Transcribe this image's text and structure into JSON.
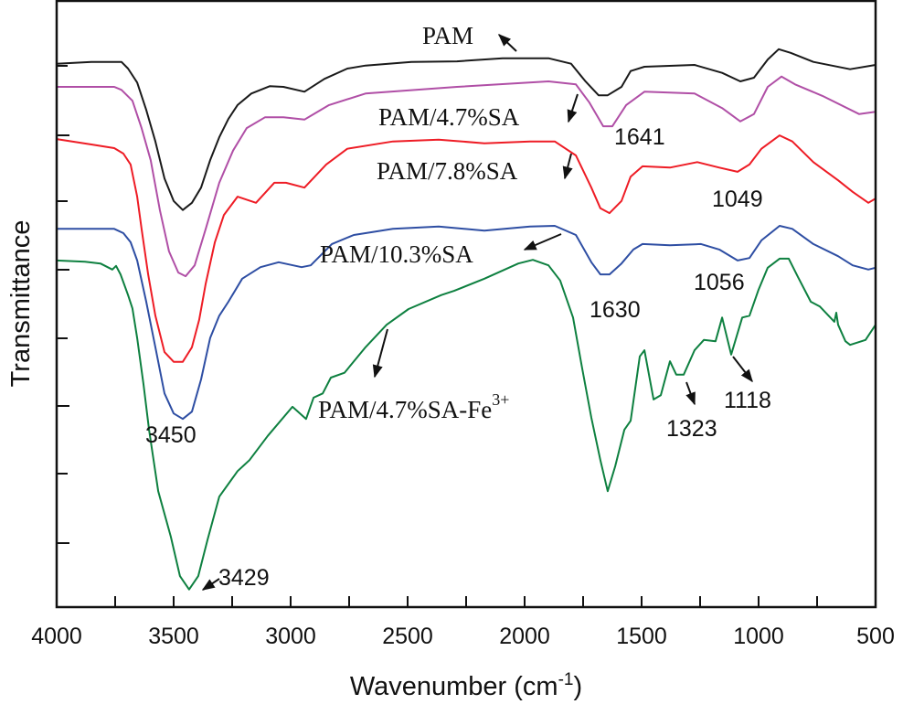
{
  "chart_data": {
    "type": "line",
    "title": "",
    "xlabel": "Wavenumber (cm",
    "xlabel_sup": "-1",
    "xlabel_close": ")",
    "ylabel": "Transmittance",
    "xlim": [
      4000,
      500
    ],
    "x_reversed": true,
    "ylim": [
      0,
      100
    ],
    "y_tick_labels_shown": false,
    "grid": false,
    "x_ticks": [
      "4000",
      "3500",
      "3000",
      "2500",
      "2000",
      "1500",
      "1000",
      "500"
    ],
    "series": [
      {
        "name": "PAM",
        "color": "#1a1a1a",
        "points": [
          [
            4000,
            89.5
          ],
          [
            3852,
            89.8
          ],
          [
            3723,
            89.8
          ],
          [
            3695,
            88.7
          ],
          [
            3656,
            86.4
          ],
          [
            3617,
            81.9
          ],
          [
            3578,
            76.7
          ],
          [
            3539,
            70.6
          ],
          [
            3500,
            66.9
          ],
          [
            3461,
            65.4
          ],
          [
            3422,
            66.6
          ],
          [
            3383,
            69.1
          ],
          [
            3344,
            73.6
          ],
          [
            3305,
            77.4
          ],
          [
            3266,
            80.4
          ],
          [
            3227,
            82.7
          ],
          [
            3168,
            84.6
          ],
          [
            3090,
            85.8
          ],
          [
            3031,
            85.7
          ],
          [
            2941,
            84.9
          ],
          [
            2856,
            87.0
          ],
          [
            2758,
            88.7
          ],
          [
            2680,
            89.2
          ],
          [
            2484,
            89.8
          ],
          [
            2289,
            89.9
          ],
          [
            2094,
            90.4
          ],
          [
            1898,
            90.4
          ],
          [
            1801,
            89.5
          ],
          [
            1742,
            86.7
          ],
          [
            1684,
            84.3
          ],
          [
            1645,
            84.3
          ],
          [
            1586,
            85.7
          ],
          [
            1547,
            88.3
          ],
          [
            1488,
            89.0
          ],
          [
            1274,
            89.3
          ],
          [
            1156,
            88.0
          ],
          [
            1078,
            86.6
          ],
          [
            1020,
            87.2
          ],
          [
            961,
            90.2
          ],
          [
            914,
            91.9
          ],
          [
            863,
            91.3
          ],
          [
            766,
            89.8
          ],
          [
            609,
            88.6
          ],
          [
            500,
            89.3
          ]
        ]
      },
      {
        "name": "PAM/4.7%SA",
        "color": "#b04fa6",
        "points": [
          [
            4000,
            85.7
          ],
          [
            3754,
            85.7
          ],
          [
            3723,
            85.2
          ],
          [
            3676,
            83.4
          ],
          [
            3637,
            78.9
          ],
          [
            3598,
            73.6
          ],
          [
            3559,
            65.4
          ],
          [
            3520,
            58.6
          ],
          [
            3480,
            55.1
          ],
          [
            3449,
            54.5
          ],
          [
            3410,
            56.3
          ],
          [
            3363,
            62.3
          ],
          [
            3305,
            69.9
          ],
          [
            3246,
            75.2
          ],
          [
            3188,
            78.9
          ],
          [
            3109,
            80.7
          ],
          [
            3031,
            80.7
          ],
          [
            2941,
            80.3
          ],
          [
            2836,
            82.7
          ],
          [
            2680,
            84.6
          ],
          [
            2289,
            85.7
          ],
          [
            1898,
            86.6
          ],
          [
            1781,
            86.1
          ],
          [
            1723,
            83.1
          ],
          [
            1664,
            79.2
          ],
          [
            1625,
            79.2
          ],
          [
            1566,
            82.7
          ],
          [
            1488,
            84.9
          ],
          [
            1274,
            84.6
          ],
          [
            1156,
            82.2
          ],
          [
            1078,
            80.0
          ],
          [
            1020,
            81.2
          ],
          [
            961,
            85.7
          ],
          [
            902,
            87.4
          ],
          [
            844,
            86.1
          ],
          [
            727,
            84.2
          ],
          [
            570,
            81.2
          ],
          [
            500,
            81.6
          ]
        ]
      },
      {
        "name": "PAM/7.8%SA",
        "color": "#ee1c25",
        "points": [
          [
            4000,
            77.1
          ],
          [
            3852,
            76.2
          ],
          [
            3754,
            75.6
          ],
          [
            3715,
            74.7
          ],
          [
            3684,
            72.9
          ],
          [
            3656,
            67.6
          ],
          [
            3637,
            62.3
          ],
          [
            3609,
            54.8
          ],
          [
            3578,
            48.0
          ],
          [
            3539,
            42.0
          ],
          [
            3500,
            40.4
          ],
          [
            3461,
            40.4
          ],
          [
            3422,
            42.8
          ],
          [
            3391,
            47.3
          ],
          [
            3363,
            53.3
          ],
          [
            3324,
            60.1
          ],
          [
            3285,
            64.6
          ],
          [
            3227,
            67.6
          ],
          [
            3148,
            66.6
          ],
          [
            3070,
            69.9
          ],
          [
            3020,
            69.9
          ],
          [
            2941,
            69.1
          ],
          [
            2848,
            72.9
          ],
          [
            2758,
            75.5
          ],
          [
            2563,
            76.7
          ],
          [
            2367,
            77.0
          ],
          [
            2172,
            76.4
          ],
          [
            1977,
            76.7
          ],
          [
            1871,
            76.7
          ],
          [
            1781,
            74.4
          ],
          [
            1715,
            69.1
          ],
          [
            1676,
            65.7
          ],
          [
            1637,
            64.9
          ],
          [
            1586,
            66.9
          ],
          [
            1547,
            70.9
          ],
          [
            1496,
            72.6
          ],
          [
            1379,
            72.4
          ],
          [
            1262,
            73.3
          ],
          [
            1168,
            72.4
          ],
          [
            1090,
            71.7
          ],
          [
            1039,
            72.9
          ],
          [
            988,
            75.5
          ],
          [
            910,
            77.7
          ],
          [
            856,
            76.7
          ],
          [
            766,
            73.3
          ],
          [
            660,
            70.3
          ],
          [
            598,
            68.4
          ],
          [
            531,
            66.6
          ],
          [
            500,
            67.3
          ]
        ]
      },
      {
        "name": "PAM/10.3%SA",
        "color": "#2e4ea3",
        "points": [
          [
            4000,
            62.3
          ],
          [
            3754,
            62.3
          ],
          [
            3715,
            61.6
          ],
          [
            3684,
            60.1
          ],
          [
            3656,
            57.1
          ],
          [
            3617,
            50.3
          ],
          [
            3578,
            42.8
          ],
          [
            3539,
            35.2
          ],
          [
            3500,
            31.9
          ],
          [
            3461,
            31.0
          ],
          [
            3422,
            32.2
          ],
          [
            3383,
            37.5
          ],
          [
            3344,
            44.3
          ],
          [
            3305,
            48.0
          ],
          [
            3266,
            50.3
          ],
          [
            3207,
            54.1
          ],
          [
            3129,
            56.0
          ],
          [
            3051,
            56.8
          ],
          [
            2953,
            56.0
          ],
          [
            2914,
            56.3
          ],
          [
            2824,
            59.8
          ],
          [
            2730,
            61.3
          ],
          [
            2563,
            62.3
          ],
          [
            2367,
            62.7
          ],
          [
            2172,
            62.0
          ],
          [
            1977,
            62.7
          ],
          [
            1871,
            62.8
          ],
          [
            1781,
            61.3
          ],
          [
            1715,
            56.8
          ],
          [
            1676,
            54.8
          ],
          [
            1637,
            54.8
          ],
          [
            1586,
            56.6
          ],
          [
            1535,
            58.9
          ],
          [
            1496,
            59.8
          ],
          [
            1379,
            59.6
          ],
          [
            1246,
            59.8
          ],
          [
            1168,
            58.9
          ],
          [
            1090,
            57.1
          ],
          [
            1039,
            57.5
          ],
          [
            988,
            60.4
          ],
          [
            910,
            62.8
          ],
          [
            856,
            62.3
          ],
          [
            766,
            59.8
          ],
          [
            660,
            57.8
          ],
          [
            598,
            56.3
          ],
          [
            531,
            55.6
          ],
          [
            500,
            55.9
          ]
        ]
      },
      {
        "name": "PAM/4.7%SA-Fe3+",
        "color": "#0e8040",
        "points": [
          [
            4000,
            57.1
          ],
          [
            3879,
            56.9
          ],
          [
            3813,
            56.6
          ],
          [
            3762,
            55.6
          ],
          [
            3746,
            56.2
          ],
          [
            3727,
            54.8
          ],
          [
            3695,
            51.4
          ],
          [
            3676,
            49.2
          ],
          [
            3656,
            44.3
          ],
          [
            3629,
            36.7
          ],
          [
            3605,
            29.2
          ],
          [
            3566,
            19.1
          ],
          [
            3512,
            11.6
          ],
          [
            3473,
            5.1
          ],
          [
            3434,
            2.9
          ],
          [
            3395,
            5.1
          ],
          [
            3355,
            11.1
          ],
          [
            3305,
            18.2
          ],
          [
            3227,
            22.4
          ],
          [
            3176,
            24.2
          ],
          [
            3098,
            28.2
          ],
          [
            2992,
            33.0
          ],
          [
            2934,
            31.0
          ],
          [
            2902,
            34.5
          ],
          [
            2863,
            35.2
          ],
          [
            2828,
            37.8
          ],
          [
            2770,
            38.6
          ],
          [
            2680,
            42.8
          ],
          [
            2590,
            46.5
          ],
          [
            2496,
            49.1
          ],
          [
            2356,
            51.4
          ],
          [
            2301,
            52.1
          ],
          [
            2172,
            54.1
          ],
          [
            2027,
            56.6
          ],
          [
            1965,
            57.2
          ],
          [
            1898,
            56.3
          ],
          [
            1848,
            53.8
          ],
          [
            1793,
            47.7
          ],
          [
            1754,
            39.3
          ],
          [
            1715,
            31.2
          ],
          [
            1676,
            24.2
          ],
          [
            1645,
            19.1
          ],
          [
            1613,
            23.2
          ],
          [
            1574,
            29.2
          ],
          [
            1547,
            30.7
          ],
          [
            1508,
            41.3
          ],
          [
            1488,
            42.3
          ],
          [
            1449,
            34.2
          ],
          [
            1418,
            34.9
          ],
          [
            1379,
            40.5
          ],
          [
            1352,
            38.3
          ],
          [
            1320,
            38.3
          ],
          [
            1274,
            42.3
          ],
          [
            1234,
            44.0
          ],
          [
            1184,
            43.8
          ],
          [
            1156,
            47.7
          ],
          [
            1117,
            41.6
          ],
          [
            1070,
            47.7
          ],
          [
            1039,
            48.0
          ],
          [
            1000,
            52.3
          ],
          [
            961,
            55.9
          ],
          [
            910,
            57.4
          ],
          [
            871,
            57.4
          ],
          [
            832,
            54.4
          ],
          [
            777,
            50.3
          ],
          [
            738,
            49.5
          ],
          [
            676,
            47.0
          ],
          [
            668,
            48.5
          ],
          [
            660,
            46.5
          ],
          [
            629,
            43.8
          ],
          [
            609,
            43.2
          ],
          [
            543,
            44.0
          ],
          [
            500,
            46.5
          ]
        ]
      }
    ],
    "series_labels": {
      "pam": "PAM",
      "sa47": "PAM/4.7%SA",
      "sa78": "PAM/7.8%SA",
      "sa103": "PAM/10.3%SA",
      "fe_base": "PAM/4.7%SA-Fe",
      "fe_sup": "3+"
    },
    "annotations": {
      "p1641": "1641",
      "p1049": "1049",
      "p1056": "1056",
      "p1630": "1630",
      "p3450": "3450",
      "p3429": "3429",
      "p1323": "1323",
      "p1118": "1118"
    }
  }
}
